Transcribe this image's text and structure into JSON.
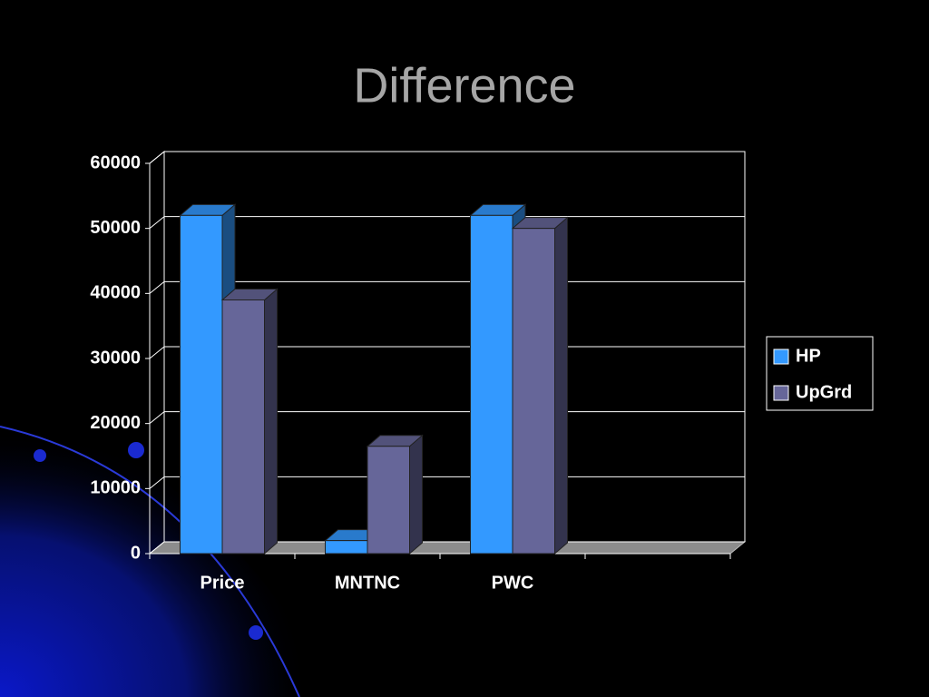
{
  "chart_data": {
    "type": "bar3d",
    "title": "Difference",
    "categories": [
      "Price",
      "MNTNC",
      "PWC",
      null
    ],
    "series": [
      {
        "name": "HP",
        "color": "#3399ff",
        "values": [
          52000,
          2000,
          52000,
          null
        ]
      },
      {
        "name": "UpGrd",
        "color": "#666699",
        "values": [
          39000,
          16500,
          50000,
          null
        ]
      }
    ],
    "ylim": [
      0,
      60000
    ],
    "yticks": [
      0,
      10000,
      20000,
      30000,
      40000,
      50000,
      60000
    ],
    "grid": true,
    "legend": "right"
  }
}
